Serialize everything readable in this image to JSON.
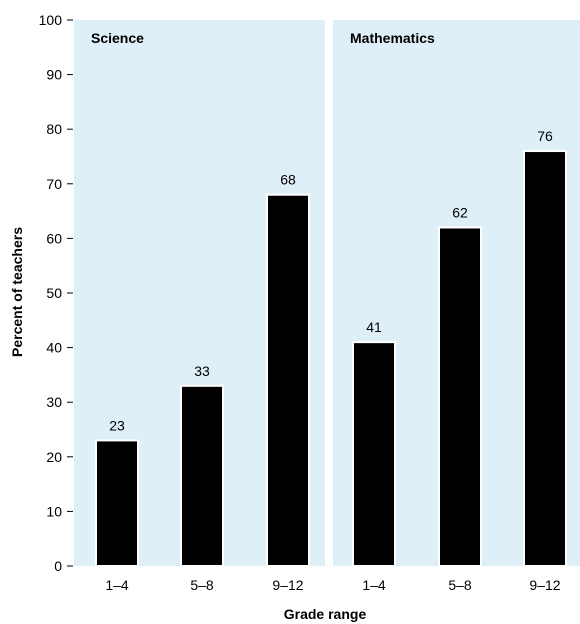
{
  "chart_data": {
    "type": "bar",
    "ylabel": "Percent of teachers",
    "xlabel": "Grade range",
    "ylim": [
      0,
      100
    ],
    "yticks": [
      0,
      10,
      20,
      30,
      40,
      50,
      60,
      70,
      80,
      90,
      100
    ],
    "grid": false,
    "panels": [
      {
        "title": "Science",
        "categories": [
          "1–4",
          "5–8",
          "9–12"
        ],
        "values": [
          23,
          33,
          68
        ]
      },
      {
        "title": "Mathematics",
        "categories": [
          "1–4",
          "5–8",
          "9–12"
        ],
        "values": [
          41,
          62,
          76
        ]
      }
    ]
  },
  "colors": {
    "panel_background": "#deeff8",
    "bar": "#000000",
    "text": "#000000"
  }
}
